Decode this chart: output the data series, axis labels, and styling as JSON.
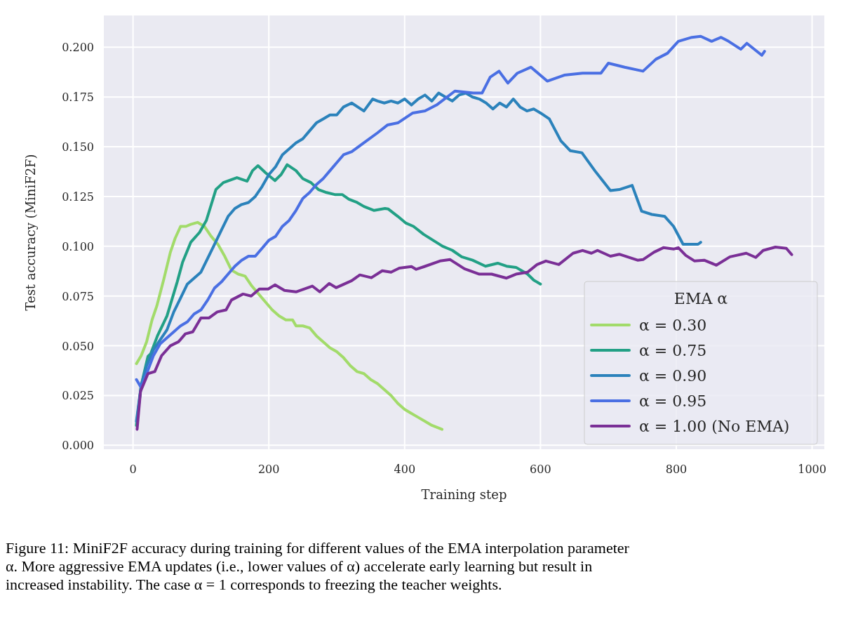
{
  "chart_data": {
    "type": "line",
    "xlabel": "Training step",
    "ylabel": "Test accuracy (MiniF2F)",
    "legend_title": "EMA α",
    "legend": "bottom right",
    "grid": true,
    "xlim": [
      -43,
      1018
    ],
    "ylim": [
      -0.002,
      0.216
    ],
    "xticks": [
      0,
      200,
      400,
      600,
      800,
      1000
    ],
    "yticks": [
      {
        "value": 0,
        "label": "0.000"
      },
      {
        "value": 0.025,
        "label": "0.025"
      },
      {
        "value": 0.05,
        "label": "0.050"
      },
      {
        "value": 0.075,
        "label": "0.075"
      },
      {
        "value": 0.1,
        "label": "0.100"
      },
      {
        "value": 0.125,
        "label": "0.125"
      },
      {
        "value": 0.15,
        "label": "0.150"
      },
      {
        "value": 0.175,
        "label": "0.175"
      },
      {
        "value": 0.2,
        "label": "0.200"
      }
    ],
    "series": [
      {
        "name": "α = 0.30",
        "color": "#a2db6a",
        "x": [
          5,
          12,
          20,
          28,
          35,
          45,
          55,
          62,
          70,
          78,
          85,
          95,
          105,
          115,
          125,
          135,
          145,
          155,
          165,
          175,
          185,
          195,
          205,
          215,
          225,
          235,
          240,
          250,
          260,
          270,
          280,
          290,
          300,
          310,
          320,
          330,
          340,
          350,
          360,
          370,
          380,
          390,
          400,
          410,
          420,
          430,
          440,
          455
        ],
        "values": [
          0.041,
          0.045,
          0.052,
          0.063,
          0.07,
          0.083,
          0.097,
          0.104,
          0.11,
          0.11,
          0.111,
          0.112,
          0.11,
          0.105,
          0.101,
          0.095,
          0.088,
          0.086,
          0.085,
          0.08,
          0.076,
          0.072,
          0.068,
          0.065,
          0.063,
          0.063,
          0.06,
          0.06,
          0.059,
          0.055,
          0.052,
          0.049,
          0.047,
          0.044,
          0.04,
          0.037,
          0.036,
          0.033,
          0.031,
          0.028,
          0.025,
          0.021,
          0.018,
          0.016,
          0.014,
          0.012,
          0.01,
          0.008
        ]
      },
      {
        "name": "α = 0.75",
        "color": "#22a085",
        "x": [
          5,
          12,
          22,
          26,
          36,
          50,
          65,
          73,
          85,
          98,
          108,
          122,
          133,
          153,
          168,
          176,
          184,
          195,
          209,
          218,
          227,
          240,
          250,
          262,
          273,
          285,
          297,
          308,
          318,
          330,
          340,
          355,
          371,
          376,
          390,
          402,
          413,
          428,
          442,
          456,
          470,
          484,
          500,
          519,
          537,
          550,
          564,
          581,
          590,
          600
        ],
        "values": [
          0.01,
          0.03,
          0.0447,
          0.046,
          0.055,
          0.065,
          0.082,
          0.092,
          0.102,
          0.107,
          0.113,
          0.1285,
          0.132,
          0.1345,
          0.1327,
          0.138,
          0.1405,
          0.137,
          0.133,
          0.136,
          0.141,
          0.138,
          0.134,
          0.132,
          0.1285,
          0.127,
          0.126,
          0.126,
          0.1236,
          0.122,
          0.12,
          0.118,
          0.119,
          0.1187,
          0.115,
          0.1116,
          0.11,
          0.106,
          0.103,
          0.1,
          0.098,
          0.0947,
          0.093,
          0.09,
          0.0915,
          0.09,
          0.0894,
          0.086,
          0.083,
          0.081
        ]
      },
      {
        "name": "α = 0.90",
        "color": "#2b82bb",
        "x": [
          5,
          12,
          20,
          30,
          40,
          50,
          60,
          70,
          80,
          90,
          100,
          110,
          120,
          130,
          140,
          150,
          160,
          170,
          180,
          190,
          200,
          210,
          220,
          230,
          240,
          250,
          260,
          270,
          280,
          290,
          300,
          310,
          322,
          340,
          353,
          360,
          370,
          380,
          390,
          400,
          410,
          420,
          430,
          440,
          450,
          460,
          470,
          480,
          490,
          500,
          510,
          520,
          530,
          540,
          550,
          560,
          570,
          580,
          590,
          600,
          613,
          630,
          644,
          661,
          680,
          703,
          716,
          735,
          749,
          764,
          783,
          796,
          810,
          832,
          836
        ],
        "values": [
          0.012,
          0.03,
          0.04,
          0.048,
          0.053,
          0.058,
          0.067,
          0.074,
          0.081,
          0.084,
          0.087,
          0.094,
          0.101,
          0.108,
          0.115,
          0.119,
          0.121,
          0.122,
          0.125,
          0.13,
          0.136,
          0.14,
          0.146,
          0.149,
          0.152,
          0.154,
          0.158,
          0.162,
          0.164,
          0.166,
          0.166,
          0.17,
          0.172,
          0.168,
          0.174,
          0.173,
          0.172,
          0.173,
          0.172,
          0.174,
          0.171,
          0.174,
          0.176,
          0.173,
          0.177,
          0.175,
          0.173,
          0.176,
          0.177,
          0.175,
          0.174,
          0.172,
          0.169,
          0.172,
          0.17,
          0.174,
          0.17,
          0.168,
          0.169,
          0.167,
          0.164,
          0.153,
          0.148,
          0.147,
          0.138,
          0.128,
          0.1285,
          0.1306,
          0.1176,
          0.116,
          0.115,
          0.11,
          0.101,
          0.101,
          0.102
        ]
      },
      {
        "name": "α = 0.95",
        "color": "#4a6fe3",
        "x": [
          5,
          12,
          20,
          30,
          40,
          50,
          60,
          70,
          80,
          90,
          100,
          110,
          120,
          130,
          140,
          150,
          160,
          170,
          180,
          190,
          200,
          210,
          220,
          230,
          240,
          250,
          260,
          270,
          280,
          290,
          300,
          310,
          322,
          340,
          360,
          375,
          390,
          412,
          430,
          447,
          474,
          501,
          514,
          526,
          539,
          552,
          566,
          586,
          610,
          635,
          662,
          689,
          700,
          724,
          751,
          770,
          787,
          803,
          823,
          836,
          852,
          866,
          877,
          895,
          904,
          926,
          930
        ],
        "values": [
          0.033,
          0.029,
          0.036,
          0.045,
          0.051,
          0.054,
          0.057,
          0.06,
          0.062,
          0.066,
          0.068,
          0.073,
          0.079,
          0.082,
          0.086,
          0.09,
          0.093,
          0.095,
          0.095,
          0.099,
          0.103,
          0.105,
          0.11,
          0.113,
          0.118,
          0.124,
          0.127,
          0.131,
          0.134,
          0.138,
          0.142,
          0.146,
          0.1475,
          0.152,
          0.157,
          0.161,
          0.162,
          0.167,
          0.168,
          0.171,
          0.178,
          0.177,
          0.177,
          0.185,
          0.188,
          0.182,
          0.187,
          0.19,
          0.183,
          0.186,
          0.187,
          0.187,
          0.192,
          0.19,
          0.188,
          0.194,
          0.197,
          0.203,
          0.205,
          0.2055,
          0.203,
          0.205,
          0.203,
          0.199,
          0.202,
          0.196,
          0.198
        ]
      },
      {
        "name": "α = 1.00 (No EMA)",
        "color": "#7a2f96",
        "x": [
          6,
          11,
          22,
          32,
          42,
          55,
          67,
          77,
          88,
          100,
          112,
          124,
          137,
          145,
          162,
          174,
          186,
          199,
          209,
          223,
          240,
          264,
          275,
          289,
          299,
          322,
          334,
          351,
          367,
          380,
          392,
          410,
          417,
          429,
          452,
          467,
          488,
          510,
          528,
          550,
          564,
          581,
          595,
          608,
          627,
          648,
          662,
          675,
          684,
          703,
          716,
          743,
          751,
          767,
          781,
          796,
          803,
          814,
          827,
          841,
          859,
          879,
          903,
          917,
          928,
          946,
          962,
          970
        ],
        "values": [
          0.008,
          0.027,
          0.036,
          0.037,
          0.045,
          0.05,
          0.052,
          0.056,
          0.057,
          0.064,
          0.064,
          0.067,
          0.068,
          0.073,
          0.076,
          0.075,
          0.0785,
          0.0785,
          0.0806,
          0.0778,
          0.0771,
          0.08,
          0.0771,
          0.0813,
          0.0792,
          0.0827,
          0.0856,
          0.0842,
          0.0877,
          0.087,
          0.089,
          0.0898,
          0.0884,
          0.0898,
          0.0926,
          0.0933,
          0.0887,
          0.086,
          0.086,
          0.084,
          0.086,
          0.087,
          0.0908,
          0.0926,
          0.0908,
          0.0965,
          0.0979,
          0.0965,
          0.0979,
          0.095,
          0.096,
          0.093,
          0.0933,
          0.097,
          0.0993,
          0.0986,
          0.0993,
          0.0954,
          0.0926,
          0.093,
          0.0905,
          0.0947,
          0.0965,
          0.0944,
          0.0979,
          0.0996,
          0.099,
          0.0958
        ]
      }
    ],
    "annotations": [
      "Figure 11: MiniF2F accuracy during training for different values of the EMA interpolation parameter α. More aggressive EMA updates (i.e., lower values of α) accelerate early learning but result in increased instability. The case α = 1 corresponds to freezing the teacher weights."
    ]
  }
}
